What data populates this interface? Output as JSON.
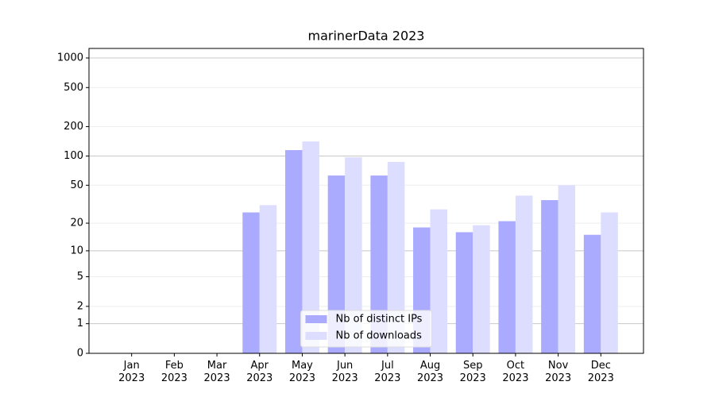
{
  "chart_data": {
    "type": "bar",
    "title": "marinerData 2023",
    "categories": [
      "Jan\n2023",
      "Feb\n2023",
      "Mar\n2023",
      "Apr\n2023",
      "May\n2023",
      "Jun\n2023",
      "Jul\n2023",
      "Aug\n2023",
      "Sep\n2023",
      "Oct\n2023",
      "Nov\n2023",
      "Dec\n2023"
    ],
    "series": [
      {
        "name": "Nb of distinct IPs",
        "color": "#aaaaff",
        "values": [
          0,
          0,
          0,
          26,
          115,
          63,
          63,
          18,
          16,
          21,
          35,
          15
        ]
      },
      {
        "name": "Nb of downloads",
        "color": "#ddddff",
        "values": [
          0,
          0,
          0,
          31,
          141,
          97,
          87,
          28,
          19,
          39,
          50,
          26
        ]
      }
    ],
    "yscale": "symlog",
    "ylim": [
      0,
      1250
    ],
    "yticks": [
      0,
      1,
      2,
      5,
      10,
      20,
      50,
      100,
      200,
      500,
      1000
    ],
    "grid": true,
    "legend": "lower center"
  }
}
